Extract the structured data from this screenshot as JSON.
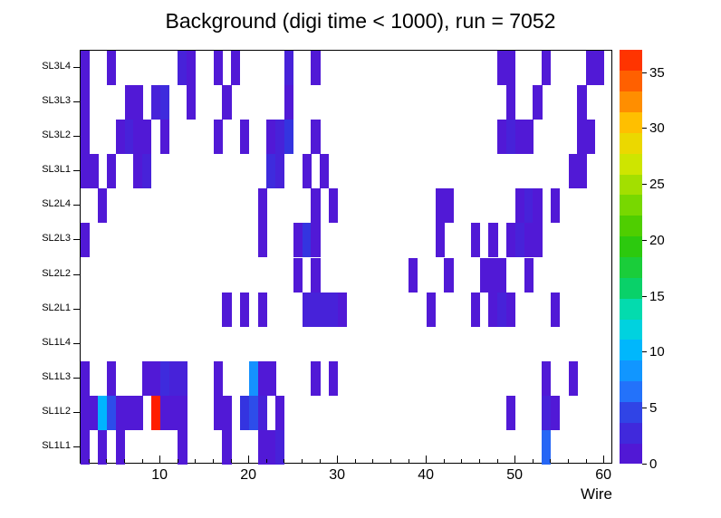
{
  "chart_data": {
    "type": "heatmap",
    "title": "Background (digi time < 1000), run = 7052",
    "xlabel": "Wire",
    "x_range": [
      1,
      61
    ],
    "x_major_ticks": [
      10,
      20,
      30,
      40,
      50,
      60
    ],
    "x_minor_step": 2,
    "rows_top_to_bottom": [
      "SL3L4",
      "SL3L3",
      "SL3L2",
      "SL3L1",
      "SL2L4",
      "SL2L3",
      "SL2L2",
      "SL2L1",
      "SL1L4",
      "SL1L3",
      "SL1L2",
      "SL1L1"
    ],
    "zmin": 0,
    "zmax": 37,
    "colorbar_ticks": [
      0,
      5,
      10,
      15,
      20,
      25,
      30,
      35
    ],
    "colorbar_bands": 20,
    "palette_stops": [
      [
        0,
        "#5a10d2"
      ],
      [
        4,
        "#3434e0"
      ],
      [
        7,
        "#1f7fff"
      ],
      [
        10,
        "#00b4ff"
      ],
      [
        13,
        "#00e0cf"
      ],
      [
        16,
        "#0ad05f"
      ],
      [
        20,
        "#32c800"
      ],
      [
        24,
        "#8cdc00"
      ],
      [
        27,
        "#d2e600"
      ],
      [
        30,
        "#ffcd00"
      ],
      [
        33,
        "#ff7d00"
      ],
      [
        37,
        "#ff1e00"
      ]
    ],
    "cells": [
      [
        "SL3L4",
        1,
        1
      ],
      [
        "SL3L4",
        4,
        1
      ],
      [
        "SL3L4",
        12,
        2
      ],
      [
        "SL3L4",
        13,
        1
      ],
      [
        "SL3L4",
        16,
        1
      ],
      [
        "SL3L4",
        18,
        1
      ],
      [
        "SL3L4",
        24,
        2
      ],
      [
        "SL3L4",
        27,
        1
      ],
      [
        "SL3L4",
        48,
        1
      ],
      [
        "SL3L4",
        49,
        1
      ],
      [
        "SL3L4",
        53,
        1
      ],
      [
        "SL3L4",
        58,
        1
      ],
      [
        "SL3L4",
        59,
        1
      ],
      [
        "SL3L3",
        1,
        1
      ],
      [
        "SL3L3",
        6,
        1
      ],
      [
        "SL3L3",
        7,
        1
      ],
      [
        "SL3L3",
        9,
        2
      ],
      [
        "SL3L3",
        10,
        3
      ],
      [
        "SL3L3",
        13,
        1
      ],
      [
        "SL3L3",
        17,
        1
      ],
      [
        "SL3L3",
        24,
        1
      ],
      [
        "SL3L3",
        49,
        1
      ],
      [
        "SL3L3",
        52,
        1
      ],
      [
        "SL3L3",
        57,
        1
      ],
      [
        "SL3L2",
        1,
        1
      ],
      [
        "SL3L2",
        5,
        1
      ],
      [
        "SL3L2",
        6,
        2
      ],
      [
        "SL3L2",
        7,
        1
      ],
      [
        "SL3L2",
        8,
        1
      ],
      [
        "SL3L2",
        10,
        1
      ],
      [
        "SL3L2",
        16,
        1
      ],
      [
        "SL3L2",
        19,
        1
      ],
      [
        "SL3L2",
        22,
        1
      ],
      [
        "SL3L2",
        23,
        2
      ],
      [
        "SL3L2",
        24,
        4
      ],
      [
        "SL3L2",
        27,
        1
      ],
      [
        "SL3L2",
        48,
        1
      ],
      [
        "SL3L2",
        49,
        2
      ],
      [
        "SL3L2",
        50,
        1
      ],
      [
        "SL3L2",
        51,
        1
      ],
      [
        "SL3L2",
        57,
        1
      ],
      [
        "SL3L2",
        58,
        1
      ],
      [
        "SL3L1",
        1,
        1
      ],
      [
        "SL3L1",
        2,
        1
      ],
      [
        "SL3L1",
        4,
        1
      ],
      [
        "SL3L1",
        7,
        1
      ],
      [
        "SL3L1",
        8,
        2
      ],
      [
        "SL3L1",
        22,
        3
      ],
      [
        "SL3L1",
        23,
        2
      ],
      [
        "SL3L1",
        26,
        1
      ],
      [
        "SL3L1",
        28,
        1
      ],
      [
        "SL3L1",
        56,
        1
      ],
      [
        "SL3L1",
        57,
        1
      ],
      [
        "SL2L4",
        3,
        1
      ],
      [
        "SL2L4",
        21,
        1
      ],
      [
        "SL2L4",
        27,
        1
      ],
      [
        "SL2L4",
        29,
        1
      ],
      [
        "SL2L4",
        41,
        1
      ],
      [
        "SL2L4",
        42,
        1
      ],
      [
        "SL2L4",
        50,
        1
      ],
      [
        "SL2L4",
        51,
        2
      ],
      [
        "SL2L4",
        52,
        1
      ],
      [
        "SL2L4",
        54,
        1
      ],
      [
        "SL2L3",
        1,
        1
      ],
      [
        "SL2L3",
        21,
        1
      ],
      [
        "SL2L3",
        25,
        1
      ],
      [
        "SL2L3",
        26,
        4
      ],
      [
        "SL2L3",
        27,
        1
      ],
      [
        "SL2L3",
        41,
        1
      ],
      [
        "SL2L3",
        45,
        1
      ],
      [
        "SL2L3",
        47,
        1
      ],
      [
        "SL2L3",
        49,
        1
      ],
      [
        "SL2L3",
        50,
        2
      ],
      [
        "SL2L3",
        51,
        1
      ],
      [
        "SL2L3",
        52,
        1
      ],
      [
        "SL2L2",
        25,
        1
      ],
      [
        "SL2L2",
        27,
        1
      ],
      [
        "SL2L2",
        38,
        1
      ],
      [
        "SL2L2",
        42,
        1
      ],
      [
        "SL2L2",
        46,
        1
      ],
      [
        "SL2L2",
        47,
        1
      ],
      [
        "SL2L2",
        48,
        1
      ],
      [
        "SL2L2",
        51,
        1
      ],
      [
        "SL2L1",
        17,
        1
      ],
      [
        "SL2L1",
        19,
        1
      ],
      [
        "SL2L1",
        21,
        1
      ],
      [
        "SL2L1",
        26,
        2
      ],
      [
        "SL2L1",
        27,
        2
      ],
      [
        "SL2L1",
        28,
        2
      ],
      [
        "SL2L1",
        29,
        2
      ],
      [
        "SL2L1",
        30,
        1
      ],
      [
        "SL2L1",
        40,
        1
      ],
      [
        "SL2L1",
        45,
        1
      ],
      [
        "SL2L1",
        47,
        1
      ],
      [
        "SL2L1",
        48,
        2
      ],
      [
        "SL2L1",
        49,
        1
      ],
      [
        "SL2L1",
        54,
        1
      ],
      [
        "SL1L3",
        1,
        1
      ],
      [
        "SL1L3",
        4,
        1
      ],
      [
        "SL1L3",
        8,
        1
      ],
      [
        "SL1L3",
        9,
        1
      ],
      [
        "SL1L3",
        10,
        3
      ],
      [
        "SL1L3",
        11,
        2
      ],
      [
        "SL1L3",
        12,
        2
      ],
      [
        "SL1L3",
        16,
        1
      ],
      [
        "SL1L3",
        20,
        8
      ],
      [
        "SL1L3",
        21,
        1
      ],
      [
        "SL1L3",
        22,
        1
      ],
      [
        "SL1L3",
        27,
        1
      ],
      [
        "SL1L3",
        29,
        1
      ],
      [
        "SL1L3",
        53,
        1
      ],
      [
        "SL1L3",
        56,
        1
      ],
      [
        "SL1L2",
        1,
        1
      ],
      [
        "SL1L2",
        2,
        1
      ],
      [
        "SL1L2",
        3,
        10
      ],
      [
        "SL1L2",
        4,
        5
      ],
      [
        "SL1L2",
        5,
        1
      ],
      [
        "SL1L2",
        6,
        1
      ],
      [
        "SL1L2",
        7,
        1
      ],
      [
        "SL1L2",
        9,
        37
      ],
      [
        "SL1L2",
        10,
        1
      ],
      [
        "SL1L2",
        11,
        1
      ],
      [
        "SL1L2",
        12,
        1
      ],
      [
        "SL1L2",
        16,
        1
      ],
      [
        "SL1L2",
        17,
        1
      ],
      [
        "SL1L2",
        19,
        4
      ],
      [
        "SL1L2",
        20,
        5
      ],
      [
        "SL1L2",
        21,
        2
      ],
      [
        "SL1L2",
        23,
        1
      ],
      [
        "SL1L2",
        49,
        1
      ],
      [
        "SL1L2",
        53,
        2
      ],
      [
        "SL1L2",
        54,
        1
      ],
      [
        "SL1L1",
        1,
        1
      ],
      [
        "SL1L1",
        3,
        1
      ],
      [
        "SL1L1",
        5,
        1
      ],
      [
        "SL1L1",
        12,
        1
      ],
      [
        "SL1L1",
        17,
        1
      ],
      [
        "SL1L1",
        21,
        1
      ],
      [
        "SL1L1",
        22,
        1
      ],
      [
        "SL1L1",
        23,
        2
      ],
      [
        "SL1L1",
        53,
        6
      ]
    ]
  }
}
